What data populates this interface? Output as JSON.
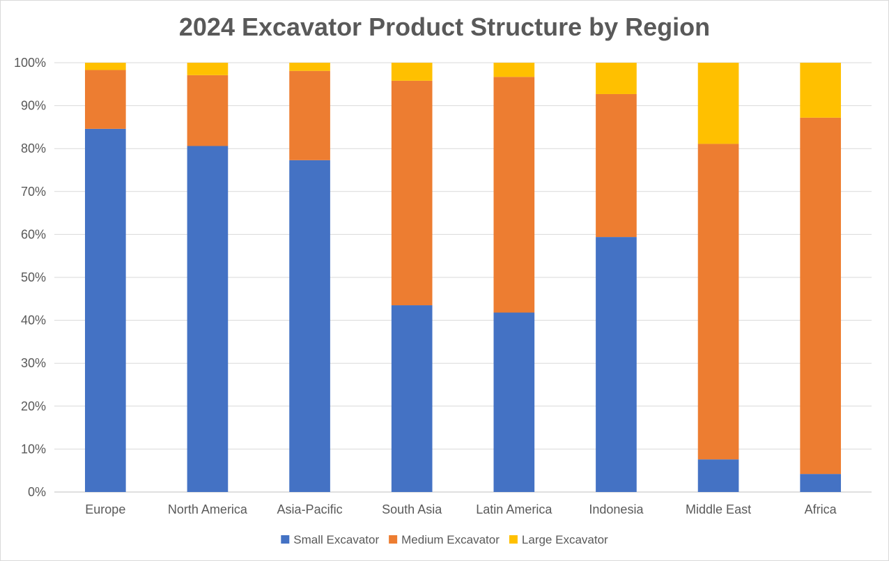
{
  "chart_data": {
    "type": "bar",
    "stacked": true,
    "title": "2024 Excavator Product Structure by Region",
    "categories": [
      "Europe",
      "North America",
      "Asia-Pacific",
      "South Asia",
      "Latin America",
      "Indonesia",
      "Middle East",
      "Africa"
    ],
    "series": [
      {
        "name": "Small Excavator",
        "color": "#4472C4",
        "values": [
          84.6,
          80.6,
          77.3,
          43.5,
          41.8,
          59.4,
          7.6,
          4.2
        ]
      },
      {
        "name": "Medium Excavator",
        "color": "#ED7D31",
        "values": [
          13.7,
          16.5,
          20.8,
          52.3,
          54.9,
          33.3,
          73.5,
          83.0
        ]
      },
      {
        "name": "Large Excavator",
        "color": "#FFC000",
        "values": [
          1.7,
          2.9,
          1.9,
          4.2,
          3.3,
          7.3,
          18.9,
          12.8
        ]
      }
    ],
    "ylim": [
      0,
      100
    ],
    "yticks": [
      "0%",
      "10%",
      "20%",
      "30%",
      "40%",
      "50%",
      "60%",
      "70%",
      "80%",
      "90%",
      "100%"
    ],
    "xlabel": "",
    "ylabel": "",
    "grid": true,
    "legend_position": "bottom"
  }
}
